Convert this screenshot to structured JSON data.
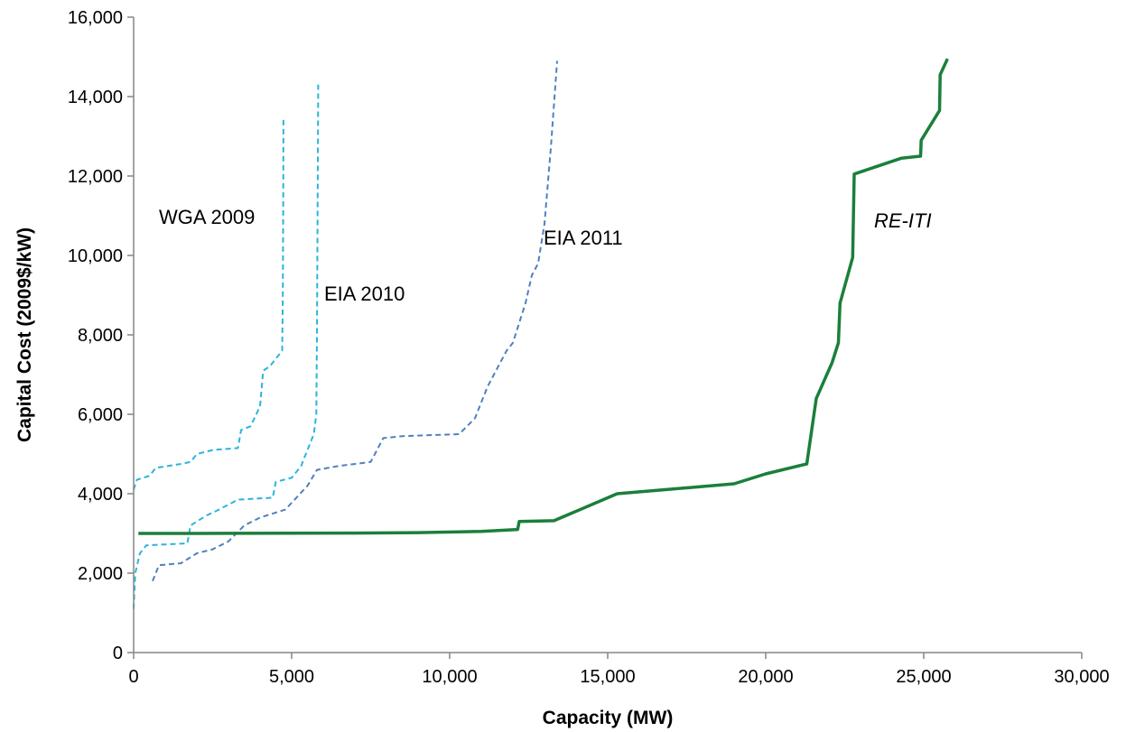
{
  "chart_data": {
    "type": "line",
    "xlabel": "Capacity (MW)",
    "ylabel": "Capital Cost (2009$/kW)",
    "xlim": [
      0,
      30000
    ],
    "ylim": [
      0,
      16000
    ],
    "x_ticks": [
      0,
      5000,
      10000,
      15000,
      20000,
      25000,
      30000
    ],
    "y_ticks": [
      0,
      2000,
      4000,
      6000,
      8000,
      10000,
      12000,
      14000,
      16000
    ],
    "x_tick_labels": [
      "0",
      "5,000",
      "10,000",
      "15,000",
      "20,000",
      "25,000",
      "30,000"
    ],
    "y_tick_labels": [
      "0",
      "2,000",
      "4,000",
      "6,000",
      "8,000",
      "10,000",
      "12,000",
      "14,000",
      "16,000"
    ],
    "grid": false,
    "legend": "none (series labeled inline)",
    "series": [
      {
        "name": "WGA 2009",
        "color": "#2bb5d8",
        "dash": "dashed",
        "points": [
          [
            0,
            4100
          ],
          [
            100,
            4350
          ],
          [
            500,
            4450
          ],
          [
            700,
            4650
          ],
          [
            1500,
            4750
          ],
          [
            1800,
            4800
          ],
          [
            2000,
            5000
          ],
          [
            2500,
            5100
          ],
          [
            3300,
            5150
          ],
          [
            3400,
            5600
          ],
          [
            3700,
            5700
          ],
          [
            4000,
            6200
          ],
          [
            4100,
            7100
          ],
          [
            4300,
            7200
          ],
          [
            4700,
            7600
          ],
          [
            4720,
            9000
          ],
          [
            4730,
            11000
          ],
          [
            4740,
            13450
          ]
        ]
      },
      {
        "name": "EIA 2010",
        "color": "#2bb5d8",
        "dash": "dashed",
        "points": [
          [
            0,
            1100
          ],
          [
            50,
            2000
          ],
          [
            200,
            2500
          ],
          [
            400,
            2700
          ],
          [
            1700,
            2750
          ],
          [
            1800,
            3200
          ],
          [
            2300,
            3450
          ],
          [
            2700,
            3600
          ],
          [
            3300,
            3850
          ],
          [
            4400,
            3900
          ],
          [
            4500,
            4300
          ],
          [
            5000,
            4400
          ],
          [
            5300,
            4700
          ],
          [
            5500,
            5100
          ],
          [
            5700,
            5500
          ],
          [
            5780,
            6000
          ],
          [
            5800,
            8000
          ],
          [
            5820,
            11000
          ],
          [
            5840,
            14300
          ]
        ]
      },
      {
        "name": "EIA 2011",
        "color": "#4f81bd",
        "dash": "dashed",
        "points": [
          [
            600,
            1800
          ],
          [
            800,
            2200
          ],
          [
            1500,
            2250
          ],
          [
            2000,
            2500
          ],
          [
            2500,
            2600
          ],
          [
            3000,
            2800
          ],
          [
            3500,
            3200
          ],
          [
            4000,
            3400
          ],
          [
            4800,
            3600
          ],
          [
            5500,
            4200
          ],
          [
            5800,
            4600
          ],
          [
            6500,
            4700
          ],
          [
            7500,
            4800
          ],
          [
            7900,
            5400
          ],
          [
            8500,
            5450
          ],
          [
            10300,
            5500
          ],
          [
            10800,
            5900
          ],
          [
            11200,
            6700
          ],
          [
            11800,
            7600
          ],
          [
            12000,
            7800
          ],
          [
            12400,
            8800
          ],
          [
            12600,
            9500
          ],
          [
            12800,
            9800
          ],
          [
            13000,
            10800
          ],
          [
            13200,
            12700
          ],
          [
            13400,
            14900
          ]
        ]
      },
      {
        "name": "RE-ITI",
        "italic": true,
        "color": "#1b7f3a",
        "dash": "solid",
        "points": [
          [
            150,
            3000
          ],
          [
            2000,
            3000
          ],
          [
            7000,
            3010
          ],
          [
            9000,
            3020
          ],
          [
            11000,
            3050
          ],
          [
            12150,
            3100
          ],
          [
            12200,
            3300
          ],
          [
            13300,
            3320
          ],
          [
            15300,
            4000
          ],
          [
            19000,
            4250
          ],
          [
            20000,
            4500
          ],
          [
            21300,
            4750
          ],
          [
            21600,
            6400
          ],
          [
            22100,
            7300
          ],
          [
            22300,
            7800
          ],
          [
            22350,
            8800
          ],
          [
            22750,
            9950
          ],
          [
            22800,
            12050
          ],
          [
            24300,
            12450
          ],
          [
            24900,
            12500
          ],
          [
            24920,
            12900
          ],
          [
            25500,
            13650
          ],
          [
            25520,
            14550
          ],
          [
            25750,
            14950
          ]
        ]
      }
    ],
    "annotations": [
      "WGA 2009",
      "EIA 2010",
      "EIA 2011",
      "RE-ITI"
    ]
  }
}
